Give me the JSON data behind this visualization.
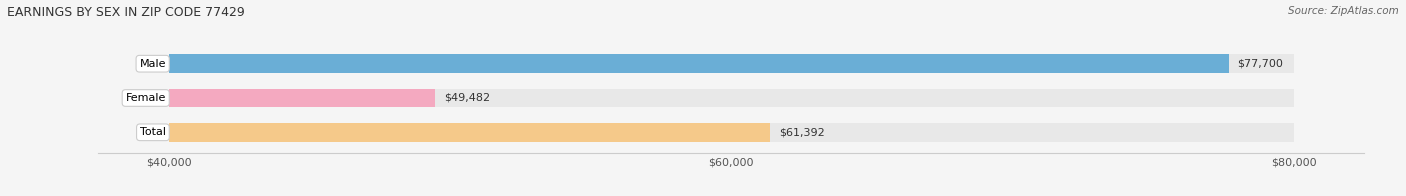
{
  "title": "EARNINGS BY SEX IN ZIP CODE 77429",
  "source": "Source: ZipAtlas.com",
  "categories": [
    "Male",
    "Female",
    "Total"
  ],
  "values": [
    77700,
    49482,
    61392
  ],
  "bar_colors": [
    "#6aaed6",
    "#f4a9c0",
    "#f5c98a"
  ],
  "bar_bg_color": "#e8e8e8",
  "xmin": 40000,
  "xmax": 80000,
  "xticks": [
    40000,
    60000,
    80000
  ],
  "xtick_labels": [
    "$40,000",
    "$60,000",
    "$80,000"
  ],
  "value_labels": [
    "$77,700",
    "$49,482",
    "$61,392"
  ],
  "title_fontsize": 9,
  "source_fontsize": 7.5,
  "tick_fontsize": 8,
  "bar_label_fontsize": 8,
  "cat_fontsize": 8,
  "figsize": [
    14.06,
    1.96
  ],
  "dpi": 100
}
